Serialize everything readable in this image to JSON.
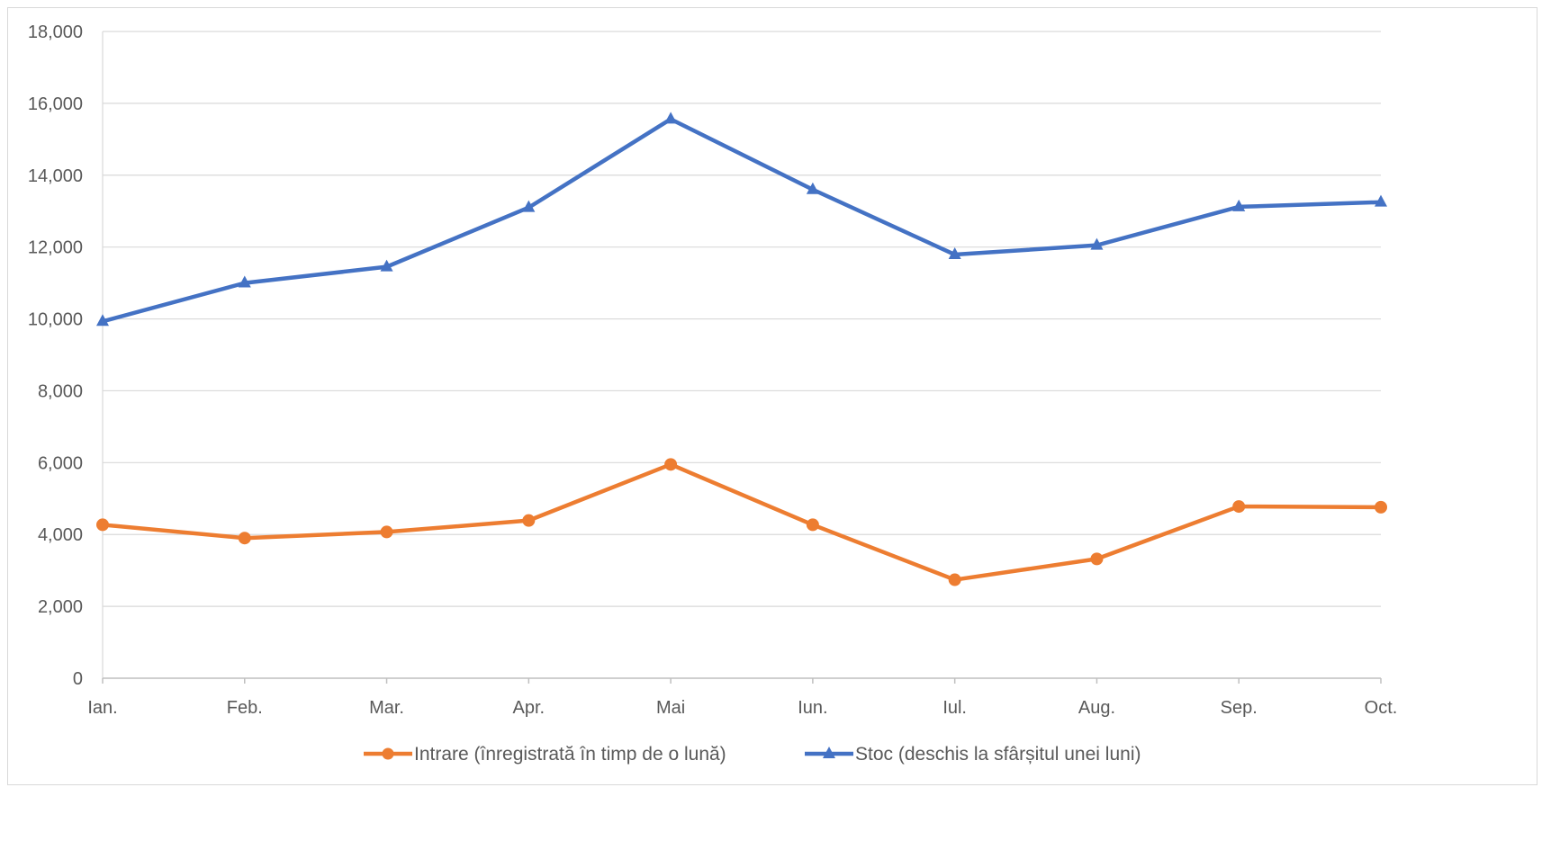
{
  "chart_data": {
    "type": "line",
    "categories": [
      "Ian.",
      "Feb.",
      "Mar.",
      "Apr.",
      "Mai",
      "Iun.",
      "Iul.",
      "Aug.",
      "Sep.",
      "Oct."
    ],
    "series": [
      {
        "name": "Intrare (înregistrată în timp de o lună)",
        "color": "#ED7D31",
        "marker": "circle",
        "values": [
          4270,
          3900,
          4070,
          4390,
          5950,
          4270,
          2740,
          3320,
          4780,
          4760
        ]
      },
      {
        "name": "Stoc (deschis la sfârșitul unei luni)",
        "color": "#4472C4",
        "marker": "triangle",
        "values": [
          9930,
          11000,
          11450,
          13100,
          15560,
          13600,
          11790,
          12050,
          13120,
          13250
        ]
      }
    ],
    "y_ticks": [
      "0",
      "2,000",
      "4,000",
      "6,000",
      "8,000",
      "10,000",
      "12,000",
      "14,000",
      "16,000",
      "18,000"
    ],
    "ylim": [
      0,
      18000
    ],
    "grid": true,
    "legend_position": "bottom"
  }
}
